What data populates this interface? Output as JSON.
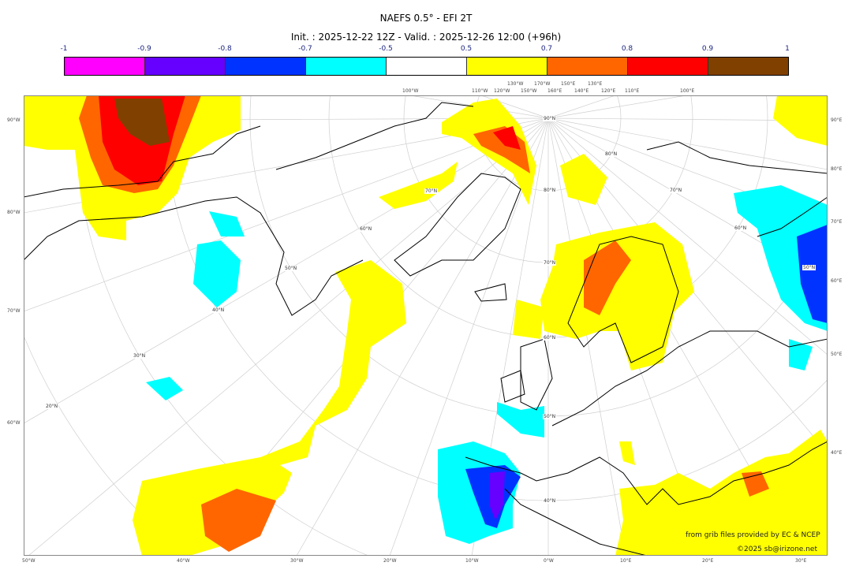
{
  "title": "NAEFS 0.5° - EFI 2T",
  "subtitle": "Init. : 2025-12-22 12Z - Valid. : 2025-12-26 12:00 (+96h)",
  "colorbar": {
    "ticks": [
      "-1",
      "-0.9",
      "-0.8",
      "-0.7",
      "-0.5",
      "0.5",
      "0.7",
      "0.8",
      "0.9",
      "1"
    ],
    "colors": [
      "#ff00ff",
      "#6600ff",
      "#0033ff",
      "#00ffff",
      "#ffffff",
      "#ffff00",
      "#ff6600",
      "#ff0000",
      "#804000"
    ]
  },
  "axes": {
    "left": [
      "90°W",
      "80°W",
      "70°W",
      "60°W"
    ],
    "right": [
      "90°E",
      "80°E",
      "70°E",
      "60°E",
      "50°E",
      "40°E"
    ],
    "bottom": [
      "50°W",
      "40°W",
      "30°W",
      "20°W",
      "10°W",
      "0°W",
      "10°E",
      "20°E",
      "30°E"
    ],
    "top": [
      "100°W",
      "110°W",
      "120°W",
      "130°W",
      "150°W",
      "170°W",
      "160°E",
      "150°E",
      "140°E",
      "130°E",
      "120°E",
      "110°E",
      "100°E"
    ]
  },
  "map_labels": [
    "70°N",
    "60°N",
    "50°N",
    "40°N",
    "30°N",
    "20°N",
    "90°N",
    "80°N",
    "70°N",
    "60°N",
    "50°N",
    "40°N",
    "80°N",
    "70°N",
    "60°N",
    "50°N"
  ],
  "credits": {
    "source": "from grib files provided by EC & NCEP",
    "copyright": "©2025 sb@irizone.net"
  }
}
